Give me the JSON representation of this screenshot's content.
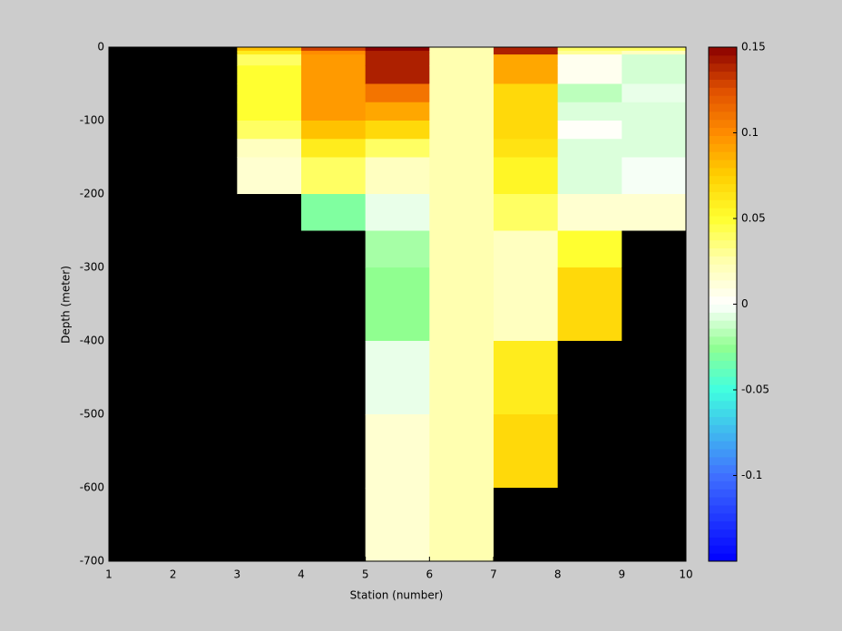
{
  "chart_data": {
    "type": "heatmap",
    "xlabel": "Station (number)",
    "ylabel": "Depth (meter)",
    "x_edges": [
      1,
      2,
      3,
      4,
      5,
      6,
      7,
      8,
      9,
      10
    ],
    "y_edges": [
      0,
      -5,
      -10,
      -25,
      -50,
      -75,
      -100,
      -125,
      -150,
      -200,
      -250,
      -300,
      -400,
      -500,
      -600,
      -700
    ],
    "z": [
      [
        null,
        null,
        null,
        null,
        null,
        null,
        null,
        null,
        null,
        null,
        null,
        null,
        null,
        null,
        null
      ],
      [
        null,
        null,
        null,
        null,
        null,
        null,
        null,
        null,
        null,
        null,
        null,
        null,
        null,
        null,
        null
      ],
      [
        0.08,
        0.06,
        0.04,
        0.05,
        0.05,
        0.05,
        0.04,
        0.02,
        0.015,
        null,
        null,
        null,
        null,
        null,
        null
      ],
      [
        0.13,
        0.1,
        0.095,
        0.095,
        0.095,
        0.095,
        0.08,
        0.06,
        0.04,
        -0.03,
        null,
        null,
        null,
        null,
        null
      ],
      [
        0.15,
        0.14,
        0.14,
        0.14,
        0.11,
        0.09,
        0.07,
        0.04,
        0.02,
        -0.005,
        -0.02,
        -0.025,
        -0.005,
        0.015,
        0.015
      ],
      [
        0.025,
        0.025,
        0.025,
        0.025,
        0.025,
        0.025,
        0.025,
        0.025,
        0.025,
        0.025,
        0.025,
        0.025,
        0.025,
        0.025,
        0.025
      ],
      [
        0.14,
        0.14,
        0.09,
        0.09,
        0.07,
        0.07,
        0.07,
        0.065,
        0.055,
        0.04,
        0.02,
        0.02,
        0.06,
        0.07,
        null
      ],
      [
        0.04,
        0.03,
        0.005,
        0.005,
        -0.015,
        -0.008,
        0.002,
        -0.008,
        -0.008,
        0.015,
        0.05,
        0.07,
        null,
        null,
        null
      ],
      [
        0.04,
        0.02,
        -0.01,
        -0.01,
        -0.005,
        -0.008,
        -0.008,
        -0.008,
        -0.002,
        0.015,
        null,
        null,
        null,
        null,
        null
      ]
    ],
    "missing_color": "#000000",
    "xlim": [
      1,
      10
    ],
    "xticks": [
      1,
      2,
      3,
      4,
      5,
      6,
      7,
      8,
      9,
      10
    ],
    "ylim": [
      -700,
      0
    ],
    "yticks": [
      0,
      -100,
      -200,
      -300,
      -400,
      -500,
      -600,
      -700
    ],
    "clim": [
      -0.15,
      0.15
    ],
    "cticks": [
      0.15,
      0.1,
      0.05,
      0,
      -0.05,
      -0.1
    ],
    "colormap": [
      [
        -0.15,
        "#0000ff"
      ],
      [
        -0.1,
        "#4070ff"
      ],
      [
        -0.05,
        "#40ffe0"
      ],
      [
        -0.025,
        "#90ff90"
      ],
      [
        0,
        "#ffffff"
      ],
      [
        0.025,
        "#ffffb0"
      ],
      [
        0.05,
        "#ffff30"
      ],
      [
        0.075,
        "#ffd000"
      ],
      [
        0.1,
        "#ff8c00"
      ],
      [
        0.125,
        "#e05000"
      ],
      [
        0.15,
        "#8b0000"
      ]
    ]
  }
}
